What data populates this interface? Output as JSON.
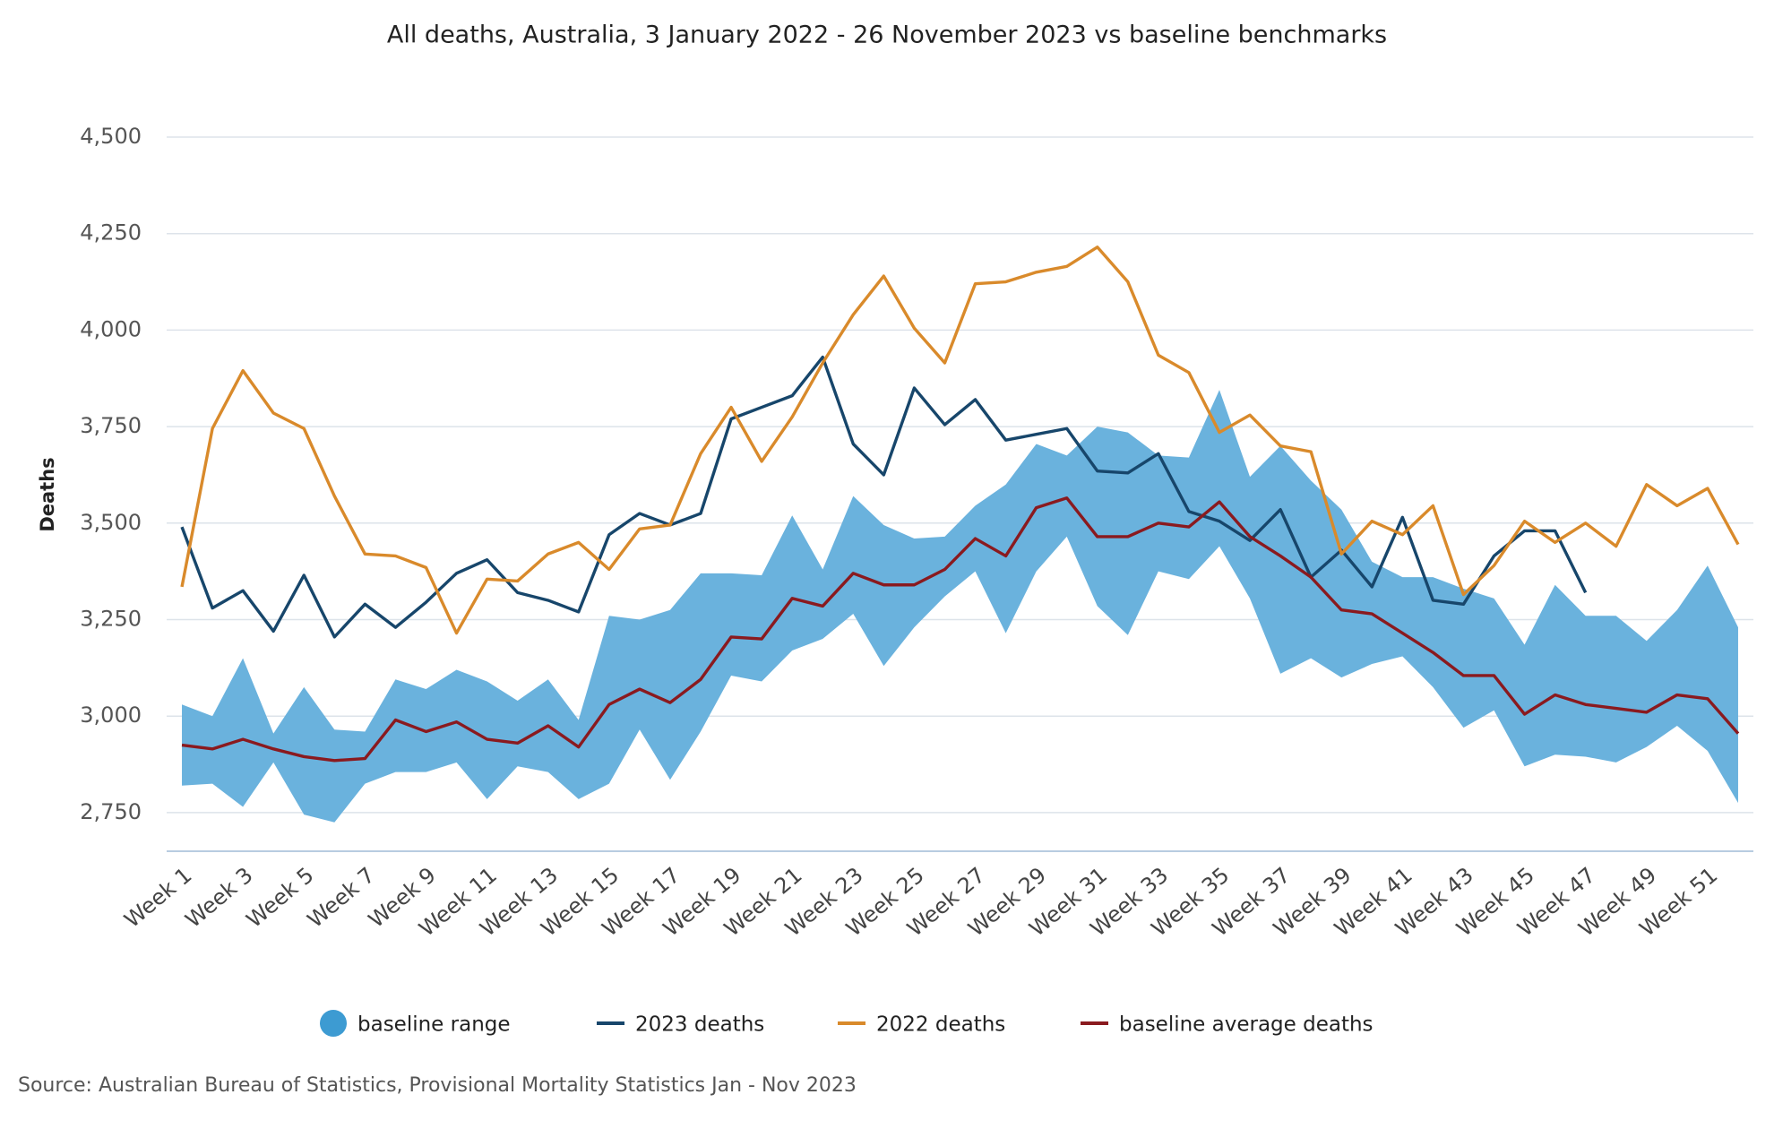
{
  "chart_data": {
    "type": "line",
    "title": "All deaths, Australia, 3 January 2022 - 26 November 2023 vs baseline benchmarks",
    "y_label": "Deaths",
    "source": "Source: Australian Bureau of Statistics, Provisional Mortality Statistics Jan - Nov 2023",
    "categories": [
      "Week 1",
      null,
      "Week 3",
      null,
      "Week 5",
      null,
      "Week 7",
      null,
      "Week 9",
      null,
      "Week 11",
      null,
      "Week 13",
      null,
      "Week 15",
      null,
      "Week 17",
      null,
      "Week 19",
      null,
      "Week 21",
      null,
      "Week 23",
      null,
      "Week 25",
      null,
      "Week 27",
      null,
      "Week 29",
      null,
      "Week 31",
      null,
      "Week 33",
      null,
      "Week 35",
      null,
      "Week 37",
      null,
      "Week 39",
      null,
      "Week 41",
      null,
      "Week 43",
      null,
      "Week 45",
      null,
      "Week 47",
      null,
      "Week 49",
      null,
      "Week 51",
      null
    ],
    "ylim": [
      2650,
      4500
    ],
    "yticks": [
      {
        "value": 2750,
        "label": "2,750"
      },
      {
        "value": 3000,
        "label": "3,000"
      },
      {
        "value": 3250,
        "label": "3,250"
      },
      {
        "value": 3500,
        "label": "3,500"
      },
      {
        "value": 3750,
        "label": "3,750"
      },
      {
        "value": 4000,
        "label": "4,000"
      },
      {
        "value": 4250,
        "label": "4,250"
      },
      {
        "value": 4500,
        "label": "4,500"
      }
    ],
    "grid": true,
    "series": [
      {
        "name": "baseline range",
        "color": "#6ab2dd",
        "legend_color": "#3d9bd2",
        "high": [
          3030,
          3000,
          3150,
          2955,
          3075,
          2965,
          2960,
          3095,
          3070,
          3120,
          3090,
          3040,
          3095,
          2990,
          3260,
          3250,
          3275,
          3370,
          3370,
          3365,
          3520,
          3380,
          3570,
          3495,
          3460,
          3465,
          3545,
          3600,
          3705,
          3675,
          3750,
          3735,
          3675,
          3670,
          3845,
          3620,
          3700,
          3610,
          3535,
          3400,
          3360,
          3360,
          3330,
          3305,
          3185,
          3340,
          3260,
          3260,
          3195,
          3275,
          3390,
          3230
        ],
        "low": [
          2820,
          2825,
          2765,
          2880,
          2745,
          2725,
          2825,
          2855,
          2855,
          2880,
          2785,
          2870,
          2855,
          2785,
          2825,
          2965,
          2835,
          2960,
          3105,
          3090,
          3170,
          3200,
          3265,
          3130,
          3230,
          3310,
          3375,
          3215,
          3375,
          3465,
          3285,
          3210,
          3375,
          3355,
          3440,
          3305,
          3110,
          3150,
          3100,
          3135,
          3155,
          3075,
          2970,
          3015,
          2870,
          2900,
          2895,
          2880,
          2920,
          2975,
          2910,
          2775
        ]
      },
      {
        "name": "2023 deaths",
        "color": "#17466b",
        "values": [
          3490,
          3280,
          3325,
          3220,
          3365,
          3205,
          3290,
          3230,
          3295,
          3370,
          3405,
          3320,
          3300,
          3270,
          3470,
          3525,
          3495,
          3525,
          3770,
          3800,
          3830,
          3930,
          3705,
          3625,
          3850,
          3755,
          3820,
          3715,
          3730,
          3745,
          3635,
          3630,
          3680,
          3530,
          3505,
          3455,
          3535,
          3360,
          3430,
          3335,
          3515,
          3300,
          3290,
          3415,
          3480,
          3480,
          3320,
          null,
          null,
          null,
          null,
          null
        ]
      },
      {
        "name": "2022 deaths",
        "color": "#d98a2b",
        "values": [
          3335,
          3745,
          3895,
          3785,
          3745,
          3570,
          3420,
          3415,
          3385,
          3215,
          3355,
          3350,
          3420,
          3450,
          3380,
          3485,
          3495,
          3680,
          3800,
          3660,
          3775,
          3915,
          4040,
          4140,
          4005,
          3915,
          4120,
          4125,
          4150,
          4165,
          4215,
          4125,
          3935,
          3890,
          3735,
          3780,
          3700,
          3685,
          3420,
          3505,
          3470,
          3545,
          3315,
          3390,
          3505,
          3450,
          3500,
          3440,
          3600,
          3545,
          3590,
          3445
        ]
      },
      {
        "name": "baseline average deaths",
        "color": "#8a1a1f",
        "values": [
          2925,
          2915,
          2940,
          2915,
          2895,
          2885,
          2890,
          2990,
          2960,
          2985,
          2940,
          2930,
          2975,
          2920,
          3030,
          3070,
          3035,
          3095,
          3205,
          3200,
          3305,
          3285,
          3370,
          3340,
          3340,
          3380,
          3460,
          3415,
          3540,
          3565,
          3465,
          3465,
          3500,
          3490,
          3555,
          3465,
          3415,
          3360,
          3275,
          3265,
          3215,
          3165,
          3105,
          3105,
          3005,
          3055,
          3030,
          3020,
          3010,
          3055,
          3045,
          2955
        ]
      }
    ]
  }
}
